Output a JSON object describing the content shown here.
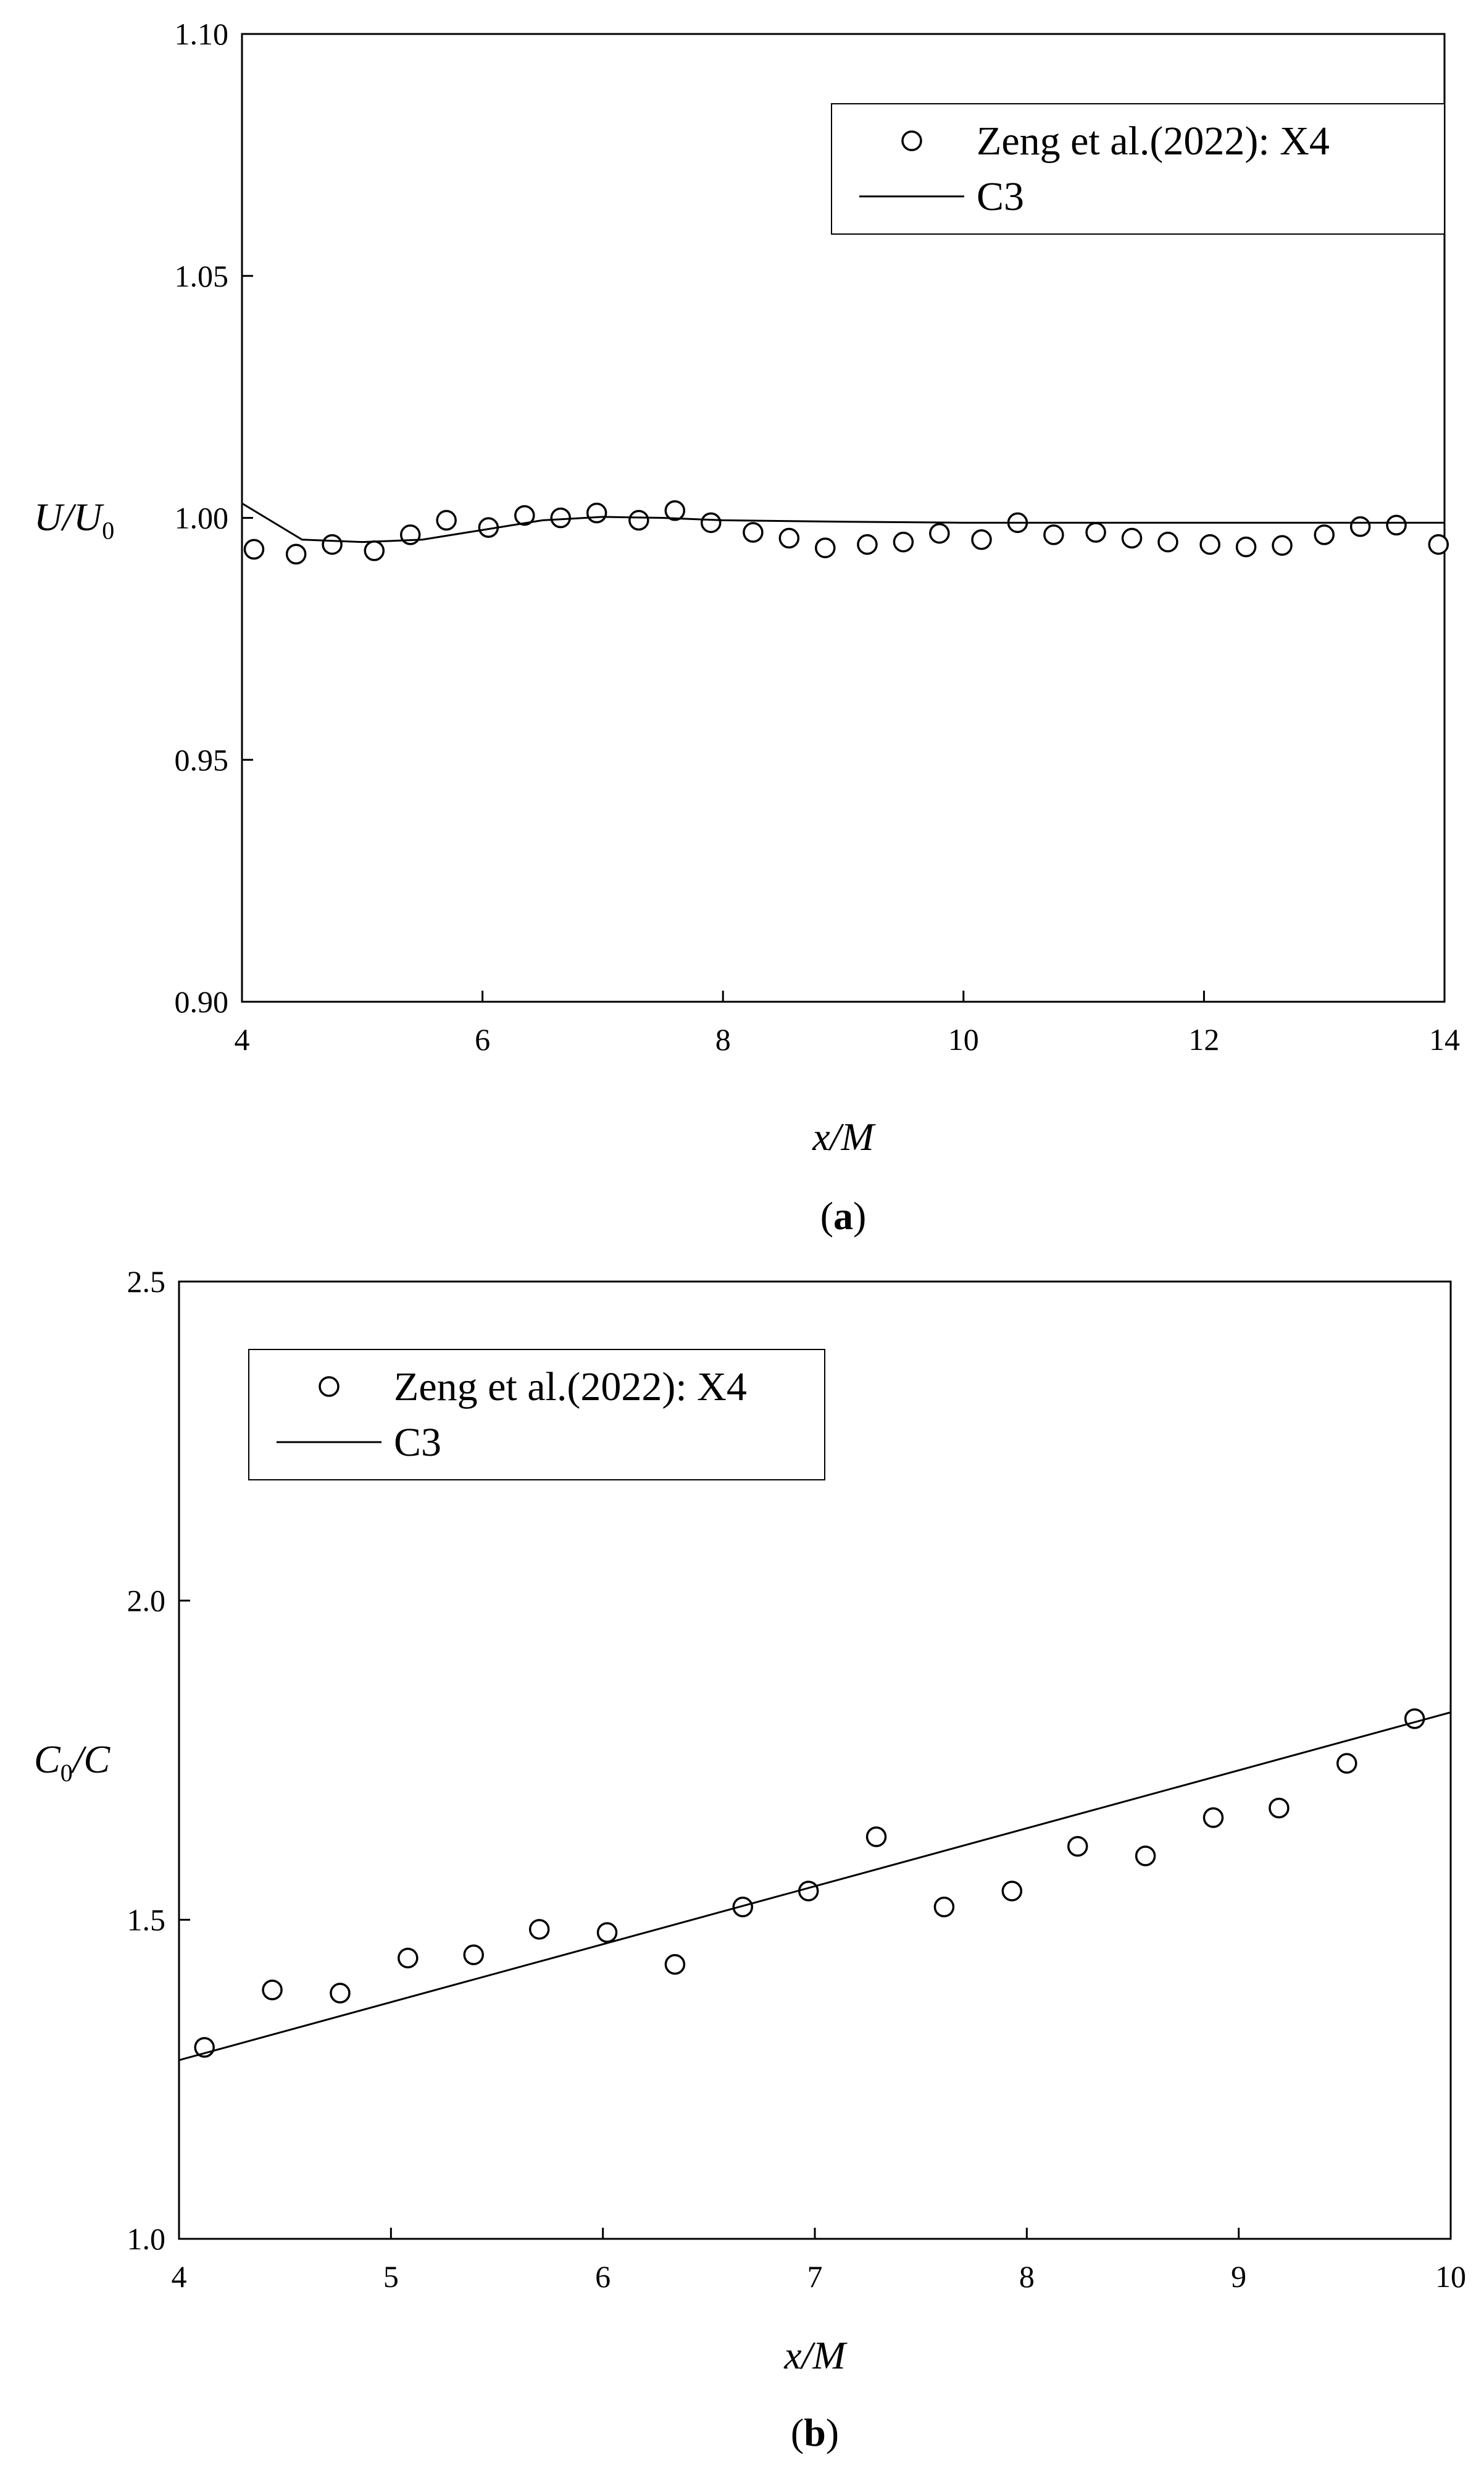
{
  "chart_data": [
    {
      "type": "scatter",
      "panel_label": "a",
      "xlabel": "x/M",
      "ylabel": "U/U0",
      "ylabel_parts": {
        "main": "U/U",
        "subscript": "0"
      },
      "xlim": [
        4,
        14
      ],
      "ylim": [
        0.9,
        1.1
      ],
      "x_ticks": [
        "4",
        "6",
        "8",
        "10",
        "12",
        "14"
      ],
      "y_ticks": [
        "0.90",
        "0.95",
        "1.00",
        "1.05",
        "1.10"
      ],
      "legend": {
        "position": "top-right",
        "entries": [
          "Zeng et al.(2022): X4",
          "C3"
        ]
      },
      "series": [
        {
          "name": "Zeng et al.(2022): X4",
          "style": "open-circle",
          "x": [
            4.1,
            4.45,
            4.75,
            5.1,
            5.4,
            5.7,
            6.05,
            6.35,
            6.65,
            6.95,
            7.3,
            7.6,
            7.9,
            8.25,
            8.55,
            8.85,
            9.2,
            9.5,
            9.8,
            10.15,
            10.45,
            10.75,
            11.1,
            11.4,
            11.7,
            12.05,
            12.35,
            12.65,
            13.0,
            13.3,
            13.6,
            13.95
          ],
          "y": [
            0.9935,
            0.9925,
            0.9945,
            0.9932,
            0.9965,
            0.9995,
            0.998,
            1.0005,
            1.0,
            1.001,
            0.9995,
            1.0015,
            0.999,
            0.997,
            0.9958,
            0.9938,
            0.9945,
            0.995,
            0.9968,
            0.9955,
            0.999,
            0.9965,
            0.997,
            0.9958,
            0.995,
            0.9945,
            0.994,
            0.9943,
            0.9965,
            0.9982,
            0.9985,
            0.9945
          ]
        },
        {
          "name": "C3",
          "style": "line",
          "x": [
            4.0,
            4.5,
            5.0,
            5.5,
            6.0,
            6.5,
            7.0,
            7.5,
            8.0,
            9.0,
            10.0,
            11.0,
            12.0,
            13.0,
            14.0
          ],
          "y": [
            1.003,
            0.9955,
            0.995,
            0.9955,
            0.9975,
            0.9995,
            1.0002,
            1.0,
            0.9995,
            0.9992,
            0.999,
            0.999,
            0.999,
            0.999,
            0.999
          ]
        }
      ]
    },
    {
      "type": "scatter",
      "panel_label": "b",
      "xlabel": "x/M",
      "ylabel": "C0/C",
      "ylabel_parts": {
        "main": "C",
        "subscript": "0",
        "rest": "/C"
      },
      "xlim": [
        4,
        10
      ],
      "ylim": [
        1.0,
        2.5
      ],
      "x_ticks": [
        "4",
        "5",
        "6",
        "7",
        "8",
        "9",
        "10"
      ],
      "y_ticks": [
        "1.0",
        "1.5",
        "2.0",
        "2.5"
      ],
      "legend": {
        "position": "top-left",
        "entries": [
          "Zeng et al.(2022): X4",
          "C3"
        ]
      },
      "series": [
        {
          "name": "Zeng et al.(2022): X4",
          "style": "open-circle",
          "x": [
            4.12,
            4.44,
            4.76,
            5.08,
            5.39,
            5.7,
            6.02,
            6.34,
            6.66,
            6.97,
            7.29,
            7.61,
            7.93,
            8.24,
            8.56,
            8.88,
            9.19,
            9.51,
            9.83
          ],
          "y": [
            1.3,
            1.39,
            1.385,
            1.44,
            1.445,
            1.485,
            1.48,
            1.43,
            1.52,
            1.545,
            1.63,
            1.52,
            1.545,
            1.615,
            1.6,
            1.66,
            1.675,
            1.745,
            1.815
          ]
        },
        {
          "name": "C3",
          "style": "line",
          "x": [
            4.0,
            10.0
          ],
          "y": [
            1.28,
            1.825
          ]
        }
      ]
    }
  ]
}
